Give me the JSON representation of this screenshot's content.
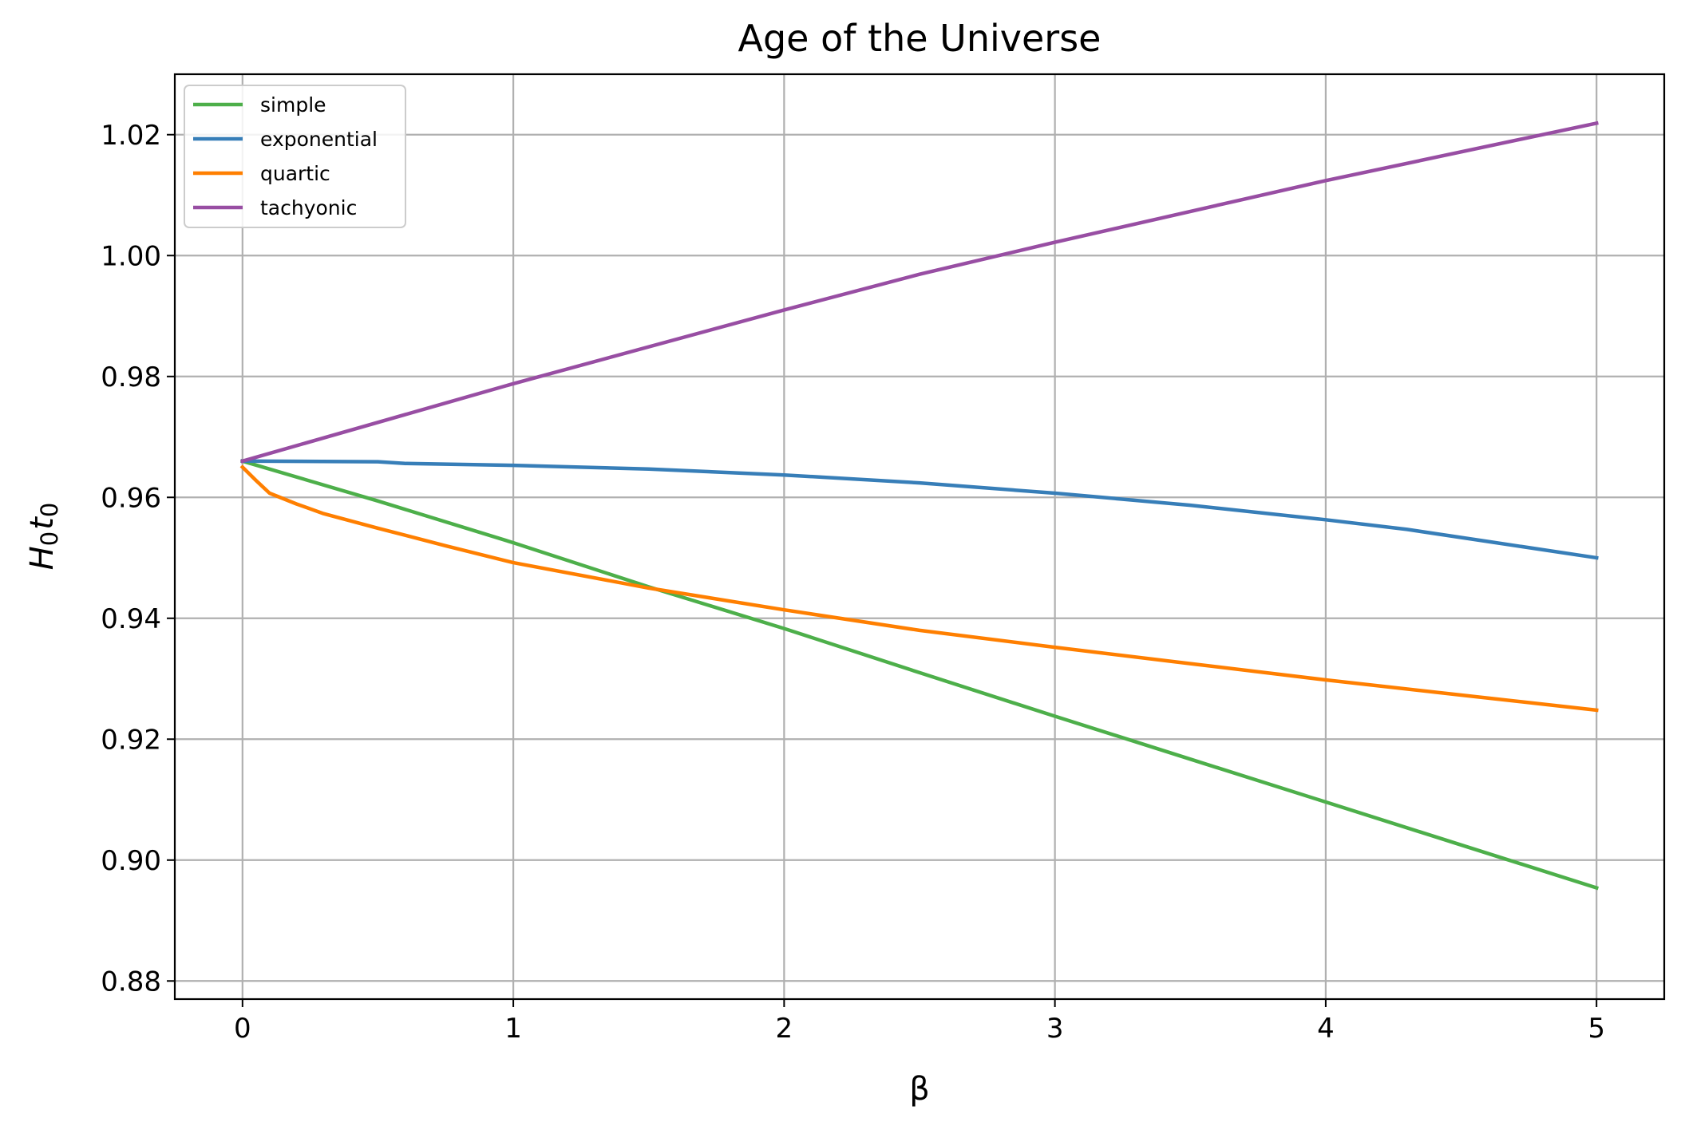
{
  "chart_data": {
    "type": "line",
    "title": "Age of the Universe",
    "xlabel": "β",
    "ylabel": {
      "base": "H",
      "base_sub": "0",
      "second": "t",
      "second_sub": "0"
    },
    "xlim": [
      -0.25,
      5.25
    ],
    "ylim": [
      0.877,
      1.03
    ],
    "xticks": [
      0,
      1,
      2,
      3,
      4,
      5
    ],
    "xtick_labels": [
      "0",
      "1",
      "2",
      "3",
      "4",
      "5"
    ],
    "yticks": [
      0.88,
      0.9,
      0.92,
      0.94,
      0.96,
      0.98,
      1.0,
      1.02
    ],
    "ytick_labels": [
      "0.88",
      "0.90",
      "0.92",
      "0.94",
      "0.96",
      "0.98",
      "1.00",
      "1.02"
    ],
    "grid": true,
    "legend_position": "top-left",
    "series": [
      {
        "name": "simple",
        "color": "#4daf4a",
        "x": [
          0,
          0.5,
          1,
          1.5,
          2,
          2.5,
          3,
          3.5,
          4,
          4.5,
          5
        ],
        "y": [
          0.966,
          0.9594,
          0.9525,
          0.9452,
          0.9383,
          0.931,
          0.9238,
          0.9167,
          0.9096,
          0.9025,
          0.8954
        ]
      },
      {
        "name": "exponential",
        "color": "#377eb8",
        "x": [
          0,
          0.5,
          0.6,
          1,
          1.5,
          2,
          2.5,
          3,
          3.5,
          4,
          4.3,
          4.6,
          5
        ],
        "y": [
          0.966,
          0.9659,
          0.9656,
          0.9653,
          0.9647,
          0.9637,
          0.9624,
          0.9607,
          0.9587,
          0.9563,
          0.9547,
          0.9527,
          0.95
        ]
      },
      {
        "name": "quartic",
        "color": "#ff7f00",
        "x": [
          0,
          0.05,
          0.1,
          0.2,
          0.3,
          0.5,
          0.75,
          1,
          1.5,
          2,
          2.5,
          3,
          3.5,
          4,
          4.5,
          5
        ],
        "y": [
          0.965,
          0.9628,
          0.9607,
          0.9589,
          0.9573,
          0.9549,
          0.952,
          0.9492,
          0.945,
          0.9414,
          0.938,
          0.9352,
          0.9325,
          0.9298,
          0.9273,
          0.9248
        ]
      },
      {
        "name": "tachyonic",
        "color": "#984ea3",
        "x": [
          0,
          1,
          2,
          2.5,
          3,
          4,
          5
        ],
        "y": [
          0.966,
          0.9788,
          0.991,
          0.9969,
          1.0022,
          1.0124,
          1.0219
        ]
      }
    ]
  }
}
